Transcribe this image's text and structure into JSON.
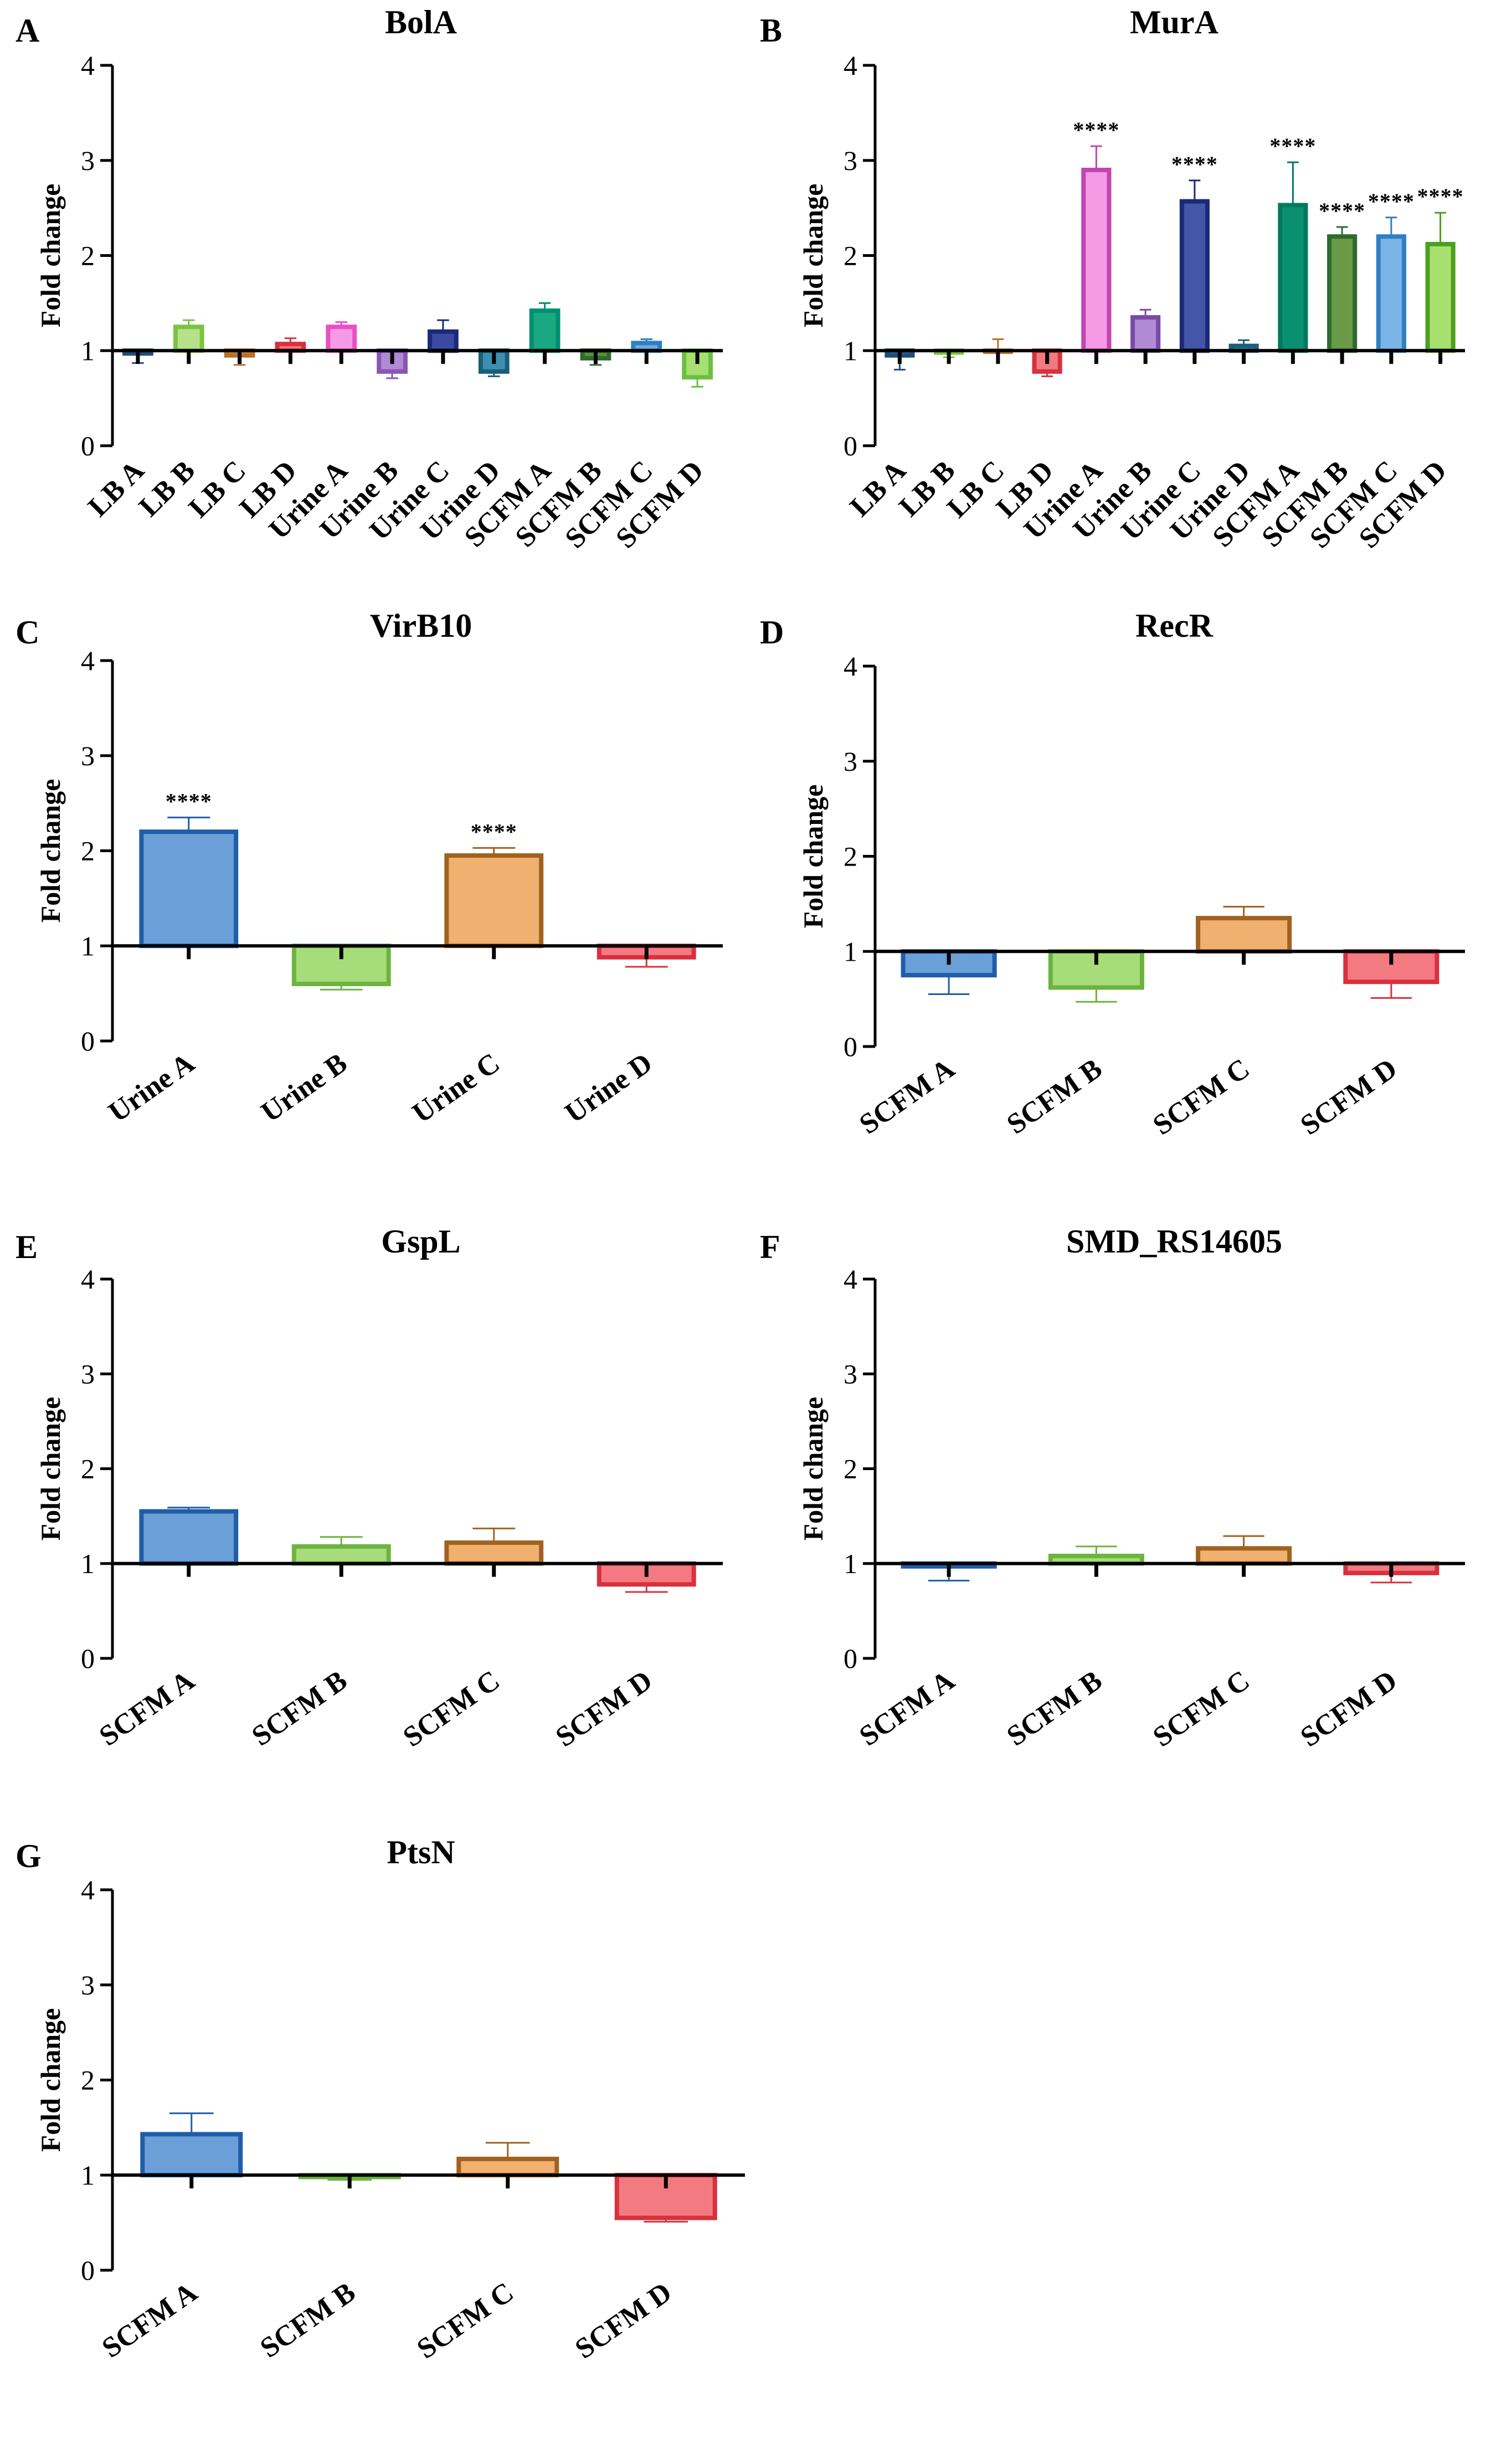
{
  "figure": {
    "panels": [
      {
        "letter": "A",
        "title": "BolA"
      },
      {
        "letter": "B",
        "title": "MurA"
      },
      {
        "letter": "C",
        "title": "VirB10"
      },
      {
        "letter": "D",
        "title": "RecR"
      },
      {
        "letter": "E",
        "title": "GspL"
      },
      {
        "letter": "F",
        "title": "SMD_RS14605"
      },
      {
        "letter": "G",
        "title": "PtsN"
      }
    ]
  },
  "chart_data": [
    {
      "panel": "A",
      "type": "bar",
      "title": "BolA",
      "ylabel": "Fold change",
      "xlabel": "",
      "ylim": [
        0,
        4
      ],
      "yticks": [
        "0",
        "1",
        "2",
        "3",
        "4"
      ],
      "baseline": 1,
      "categories": [
        "LB A",
        "LB B",
        "LB C",
        "LB D",
        "Urine A",
        "Urine B",
        "Urine C",
        "Urine D",
        "SCFM A",
        "SCFM B",
        "SCFM C",
        "SCFM D"
      ],
      "values": [
        0.97,
        1.25,
        0.95,
        1.07,
        1.25,
        0.78,
        1.2,
        0.78,
        1.42,
        0.92,
        1.08,
        0.72
      ],
      "errors": [
        0.1,
        0.07,
        0.1,
        0.06,
        0.05,
        0.07,
        0.12,
        0.05,
        0.08,
        0.07,
        0.04,
        0.1
      ],
      "colors": [
        "#1f4e79",
        "#7dc242",
        "#b8702c",
        "#d9303e",
        "#e84fc4",
        "#8a55b6",
        "#1b2a78",
        "#1a5f7a",
        "#009070",
        "#2f6b2f",
        "#2f7fc1",
        "#6cc040"
      ],
      "fills": [
        "#5b8ec4",
        "#b8e08a",
        "#e8ad70",
        "#f07a7f",
        "#f59ae5",
        "#b08ad4",
        "#3b4aa0",
        "#3c8fb0",
        "#1aa880",
        "#5a8f3a",
        "#6aaee0",
        "#a8e070"
      ],
      "significance": [
        "",
        "",
        "",
        "",
        "",
        "",
        "",
        "",
        "",
        "",
        "",
        ""
      ],
      "x_tick_style": "rotated"
    },
    {
      "panel": "B",
      "type": "bar",
      "title": "MurA",
      "ylabel": "Fold change",
      "xlabel": "",
      "ylim": [
        0,
        4
      ],
      "yticks": [
        "0",
        "1",
        "2",
        "3",
        "4"
      ],
      "baseline": 1,
      "categories": [
        "LB A",
        "LB B",
        "LB C",
        "LB D",
        "Urine A",
        "Urine B",
        "Urine C",
        "Urine D",
        "SCFM A",
        "SCFM B",
        "SCFM C",
        "SCFM D"
      ],
      "values": [
        0.95,
        0.98,
        1.0,
        0.78,
        2.9,
        1.35,
        2.57,
        1.05,
        2.53,
        2.2,
        2.2,
        2.12
      ],
      "errors": [
        0.15,
        0.05,
        0.12,
        0.05,
        0.25,
        0.08,
        0.22,
        0.06,
        0.45,
        0.1,
        0.2,
        0.33
      ],
      "colors": [
        "#1f4e79",
        "#7dc242",
        "#b8702c",
        "#d9303e",
        "#c245b0",
        "#7a4aa6",
        "#1b2a78",
        "#1a5f7a",
        "#007a5e",
        "#2f6b2f",
        "#2f7fc1",
        "#4ca020"
      ],
      "fills": [
        "#5b8ec4",
        "#b8e08a",
        "#e8ad70",
        "#f07a7f",
        "#f59ae5",
        "#b08ad4",
        "#4356a8",
        "#3c8fb0",
        "#0a9070",
        "#6a9a45",
        "#7ab4e6",
        "#a8e070"
      ],
      "significance": [
        "",
        "",
        "",
        "",
        "****",
        "",
        "****",
        "",
        "****",
        "****",
        "****",
        "****"
      ],
      "x_tick_style": "rotated"
    },
    {
      "panel": "C",
      "type": "bar",
      "title": "VirB10",
      "ylabel": "Fold change",
      "xlabel": "",
      "ylim": [
        0,
        4
      ],
      "yticks": [
        "0",
        "1",
        "2",
        "3",
        "4"
      ],
      "baseline": 1,
      "categories": [
        "Urine A",
        "Urine B",
        "Urine C",
        "Urine D"
      ],
      "values": [
        2.2,
        0.6,
        1.95,
        0.88
      ],
      "errors": [
        0.15,
        0.06,
        0.08,
        0.1
      ],
      "colors": [
        "#1f5da8",
        "#6db33f",
        "#a0621e",
        "#d9303e"
      ],
      "fills": [
        "#6a9fd8",
        "#a6dd7a",
        "#f0b070",
        "#f47a82"
      ],
      "significance": [
        "****",
        "",
        "****",
        ""
      ],
      "x_tick_style": "rotated"
    },
    {
      "panel": "D",
      "type": "bar",
      "title": "RecR",
      "ylabel": "Fold change",
      "xlabel": "",
      "ylim": [
        0,
        4
      ],
      "yticks": [
        "0",
        "1",
        "2",
        "3",
        "4"
      ],
      "baseline": 1,
      "categories": [
        "SCFM A",
        "SCFM B",
        "SCFM C",
        "SCFM D"
      ],
      "values": [
        0.75,
        0.62,
        1.35,
        0.68
      ],
      "errors": [
        0.2,
        0.15,
        0.12,
        0.17
      ],
      "colors": [
        "#1f5da8",
        "#6db33f",
        "#a0621e",
        "#d9303e"
      ],
      "fills": [
        "#6a9fd8",
        "#a6dd7a",
        "#f0b070",
        "#f47a82"
      ],
      "significance": [
        "",
        "",
        "",
        ""
      ],
      "x_tick_style": "rotated"
    },
    {
      "panel": "E",
      "type": "bar",
      "title": "GspL",
      "ylabel": "Fold change",
      "xlabel": "",
      "ylim": [
        0,
        4
      ],
      "yticks": [
        "0",
        "1",
        "2",
        "3",
        "4"
      ],
      "baseline": 1,
      "categories": [
        "SCFM A",
        "SCFM B",
        "SCFM C",
        "SCFM D"
      ],
      "values": [
        1.55,
        1.18,
        1.22,
        0.78
      ],
      "errors": [
        0.04,
        0.1,
        0.15,
        0.08
      ],
      "colors": [
        "#1f5da8",
        "#6db33f",
        "#a0621e",
        "#d9303e"
      ],
      "fills": [
        "#6a9fd8",
        "#a6dd7a",
        "#f0b070",
        "#f47a82"
      ],
      "significance": [
        "",
        "",
        "",
        ""
      ],
      "x_tick_style": "rotated"
    },
    {
      "panel": "F",
      "type": "bar",
      "title": "SMD_RS14605",
      "ylabel": "Fold change",
      "xlabel": "",
      "ylim": [
        0,
        4
      ],
      "yticks": [
        "0",
        "1",
        "2",
        "3",
        "4"
      ],
      "baseline": 1,
      "categories": [
        "SCFM A",
        "SCFM B",
        "SCFM C",
        "SCFM D"
      ],
      "values": [
        0.97,
        1.08,
        1.16,
        0.9
      ],
      "errors": [
        0.15,
        0.1,
        0.13,
        0.1
      ],
      "colors": [
        "#1f5da8",
        "#6db33f",
        "#a0621e",
        "#d9303e"
      ],
      "fills": [
        "#6a9fd8",
        "#a6dd7a",
        "#f0b070",
        "#f47a82"
      ],
      "significance": [
        "",
        "",
        "",
        ""
      ],
      "x_tick_style": "rotated"
    },
    {
      "panel": "G",
      "type": "bar",
      "title": "PtsN",
      "ylabel": "Fold change",
      "xlabel": "",
      "ylim": [
        0,
        4
      ],
      "yticks": [
        "0",
        "1",
        "2",
        "3",
        "4"
      ],
      "baseline": 1,
      "categories": [
        "SCFM A",
        "SCFM B",
        "SCFM C",
        "SCFM D"
      ],
      "values": [
        1.43,
        0.98,
        1.17,
        0.55
      ],
      "errors": [
        0.22,
        0.03,
        0.17,
        0.04
      ],
      "colors": [
        "#1f5da8",
        "#6db33f",
        "#a0621e",
        "#d9303e"
      ],
      "fills": [
        "#6a9fd8",
        "#a6dd7a",
        "#f0b070",
        "#f47a82"
      ],
      "significance": [
        "",
        "",
        "",
        ""
      ],
      "x_tick_style": "rotated"
    }
  ]
}
